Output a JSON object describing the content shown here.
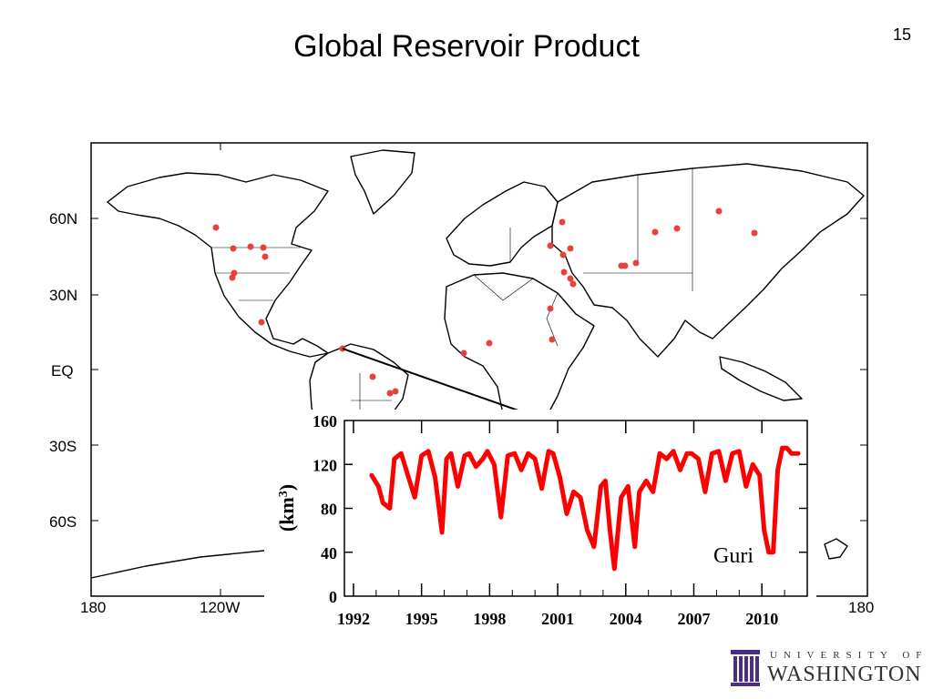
{
  "slide": {
    "title": "Global Reservoir Product",
    "page_number": "15"
  },
  "map": {
    "lat_labels": [
      "60N",
      "30N",
      "EQ",
      "30S",
      "60S"
    ],
    "lon_labels": [
      "180",
      "120W",
      "180"
    ],
    "reservoir_color": "#e8413c"
  },
  "chart_data": {
    "type": "line",
    "xlabel": "",
    "ylabel": "(km3)",
    "ylim": [
      0,
      160
    ],
    "yticks": [
      0,
      40,
      80,
      120,
      160
    ],
    "xticks": [
      1992,
      1995,
      1998,
      2001,
      2004,
      2007,
      2010
    ],
    "xlim": [
      1991.6,
      2012.0
    ],
    "annotation": "Guri",
    "series": [
      {
        "color": "#ff0000",
        "x": [
          1992.8,
          1993.1,
          1993.3,
          1993.6,
          1993.8,
          1994.1,
          1994.4,
          1994.7,
          1995.0,
          1995.3,
          1995.6,
          1995.9,
          1996.1,
          1996.3,
          1996.6,
          1996.9,
          1997.1,
          1997.4,
          1997.7,
          1997.9,
          1998.2,
          1998.5,
          1998.8,
          1999.1,
          1999.4,
          1999.7,
          2000.0,
          2000.3,
          2000.6,
          2000.8,
          2001.1,
          2001.4,
          2001.7,
          2002.0,
          2002.3,
          2002.6,
          2002.9,
          2003.1,
          2003.3,
          2003.5,
          2003.8,
          2004.1,
          2004.4,
          2004.6,
          2004.9,
          2005.2,
          2005.5,
          2005.8,
          2006.1,
          2006.4,
          2006.7,
          2006.9,
          2007.2,
          2007.5,
          2007.8,
          2008.1,
          2008.4,
          2008.7,
          2009.0,
          2009.3,
          2009.6,
          2009.9,
          2010.1,
          2010.3,
          2010.5,
          2010.7,
          2010.9,
          2011.1,
          2011.3,
          2011.6
        ],
        "y": [
          110,
          100,
          85,
          80,
          125,
          130,
          110,
          90,
          128,
          132,
          108,
          58,
          125,
          130,
          100,
          128,
          130,
          118,
          125,
          132,
          120,
          72,
          128,
          130,
          115,
          130,
          125,
          98,
          132,
          130,
          108,
          75,
          95,
          90,
          60,
          45,
          100,
          105,
          60,
          25,
          90,
          100,
          45,
          95,
          105,
          95,
          130,
          125,
          132,
          115,
          130,
          130,
          125,
          95,
          130,
          132,
          105,
          130,
          132,
          100,
          120,
          110,
          60,
          40,
          40,
          115,
          135,
          135,
          130,
          130
        ]
      }
    ]
  }
}
